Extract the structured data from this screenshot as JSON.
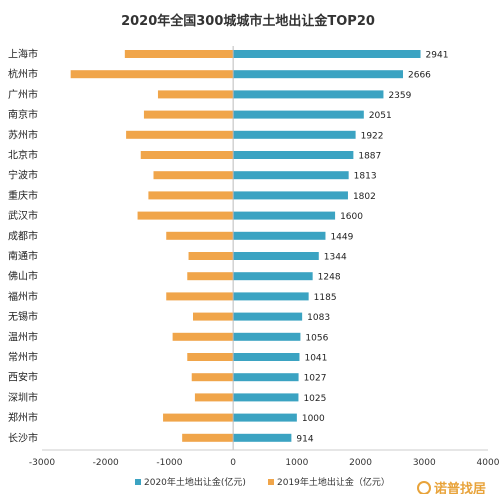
{
  "chart_data": {
    "type": "bar",
    "orientation": "horizontal-diverging",
    "title": "2020年全国300城城市土地出让金TOP20",
    "categories": [
      "上海市",
      "杭州市",
      "广州市",
      "南京市",
      "苏州市",
      "北京市",
      "宁波市",
      "重庆市",
      "武汉市",
      "成都市",
      "南通市",
      "佛山市",
      "福州市",
      "无锡市",
      "温州市",
      "常州市",
      "西安市",
      "深圳市",
      "郑州市",
      "长沙市"
    ],
    "series": [
      {
        "name": "2020年土地出让金(亿元)",
        "color": "#3ba3c2",
        "values": [
          2941,
          2666,
          2359,
          2051,
          1922,
          1887,
          1813,
          1802,
          1600,
          1449,
          1344,
          1248,
          1185,
          1083,
          1056,
          1041,
          1027,
          1025,
          1000,
          914
        ],
        "data_labels": [
          "2941",
          "2666",
          "2359",
          "2051",
          "1922",
          "1887",
          "1813",
          "1802",
          "1600",
          "1449",
          "1344",
          "1248",
          "1185",
          "1083",
          "1056",
          "1041",
          "1027",
          "1025",
          "1000",
          "914"
        ]
      },
      {
        "name": "2019年土地出让金（亿元）",
        "color": "#f0a54a",
        "values": [
          -1700,
          -2550,
          -1180,
          -1400,
          -1680,
          -1450,
          -1250,
          -1330,
          -1500,
          -1050,
          -700,
          -720,
          -1050,
          -630,
          -950,
          -720,
          -650,
          -600,
          -1100,
          -800
        ]
      }
    ],
    "xlim": [
      -3000,
      4000
    ],
    "xticks": [
      -3000,
      -2000,
      -1000,
      0,
      1000,
      2000,
      3000,
      4000
    ],
    "xtick_labels": [
      "-3000",
      "-2000",
      "-1000",
      "0",
      "1000",
      "2000",
      "3000",
      "4000"
    ],
    "legend": "bottom",
    "grid": false
  },
  "watermark": {
    "text": "诺普找居",
    "color": "#e8a33a"
  }
}
